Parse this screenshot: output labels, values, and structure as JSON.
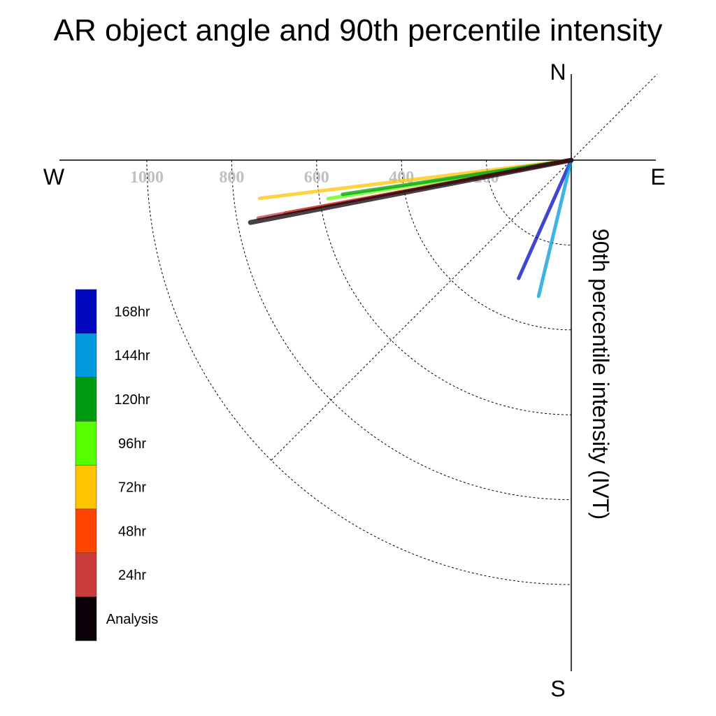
{
  "chart_data": {
    "type": "polar-vector",
    "title": "AR object angle and 90th percentile intensity",
    "ylabel": "90th percentile intensity (IVT)",
    "compass": {
      "north": "N",
      "south": "S",
      "east": "E",
      "west": "W"
    },
    "radial_ticks": [
      "1000",
      "800",
      "600",
      "400",
      "200"
    ],
    "radial_tick_values": [
      1000,
      800,
      600,
      400,
      200
    ],
    "radial_max": 1200,
    "series": [
      {
        "name": "Analysis",
        "color": "#0a0008",
        "bearing_deg": 259,
        "intensity": 770
      },
      {
        "name": "24hr",
        "color": "#cc3c3c",
        "bearing_deg": 259.5,
        "intensity": 750
      },
      {
        "name": "48hr",
        "color": "#ff4400",
        "bearing_deg": 259.5,
        "intensity": 685
      },
      {
        "name": "72hr",
        "color": "#ffc400",
        "bearing_deg": 263,
        "intensity": 740
      },
      {
        "name": "96hr",
        "color": "#55ff00",
        "bearing_deg": 261,
        "intensity": 580
      },
      {
        "name": "120hr",
        "color": "#009a10",
        "bearing_deg": 261.5,
        "intensity": 545
      },
      {
        "name": "144hr",
        "color": "#0099dd",
        "bearing_deg": 193.5,
        "intensity": 330
      },
      {
        "name": "168hr",
        "color": "#0008c0",
        "bearing_deg": 204,
        "intensity": 305
      }
    ],
    "legend_placement": "left",
    "legend_order": [
      "168hr",
      "144hr",
      "120hr",
      "96hr",
      "72hr",
      "48hr",
      "24hr",
      "Analysis"
    ]
  }
}
